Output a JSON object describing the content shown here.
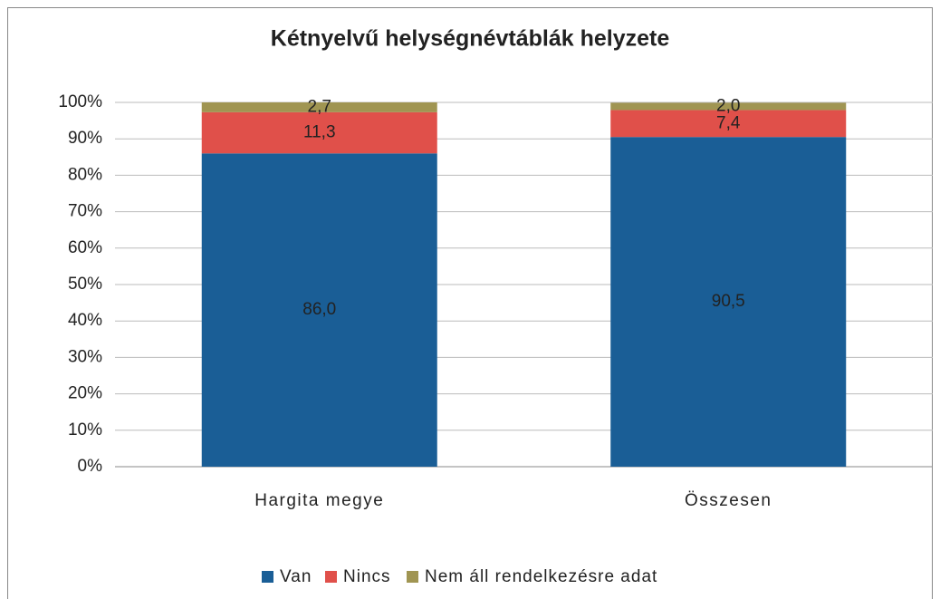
{
  "chart_data": {
    "type": "stacked_bar",
    "title": "Kétnyelvű helységnévtáblák helyzete",
    "categories": [
      "Hargita megye",
      "Összesen"
    ],
    "series": [
      {
        "name": "Van",
        "color": "#1a5e96",
        "values": [
          86.0,
          90.5
        ],
        "value_labels": [
          "86,0",
          "90,5"
        ]
      },
      {
        "name": "Nincs",
        "color": "#e0504a",
        "values": [
          11.3,
          7.4
        ],
        "value_labels": [
          "11,3",
          "7,4"
        ]
      },
      {
        "name": "Nem áll rendelkezésre adat",
        "color": "#a09552",
        "values": [
          2.7,
          2.0
        ],
        "value_labels": [
          "2,7",
          "2,0"
        ]
      }
    ],
    "ylim": [
      0,
      100
    ],
    "yticks": [
      {
        "value": 0,
        "label": "0%"
      },
      {
        "value": 10,
        "label": "10%"
      },
      {
        "value": 20,
        "label": "20%"
      },
      {
        "value": 30,
        "label": "30%"
      },
      {
        "value": 40,
        "label": "40%"
      },
      {
        "value": 50,
        "label": "50%"
      },
      {
        "value": 60,
        "label": "60%"
      },
      {
        "value": 70,
        "label": "70%"
      },
      {
        "value": 80,
        "label": "80%"
      },
      {
        "value": 90,
        "label": "90%"
      },
      {
        "value": 100,
        "label": "100%"
      }
    ],
    "grid": true,
    "legend": "bottom"
  }
}
